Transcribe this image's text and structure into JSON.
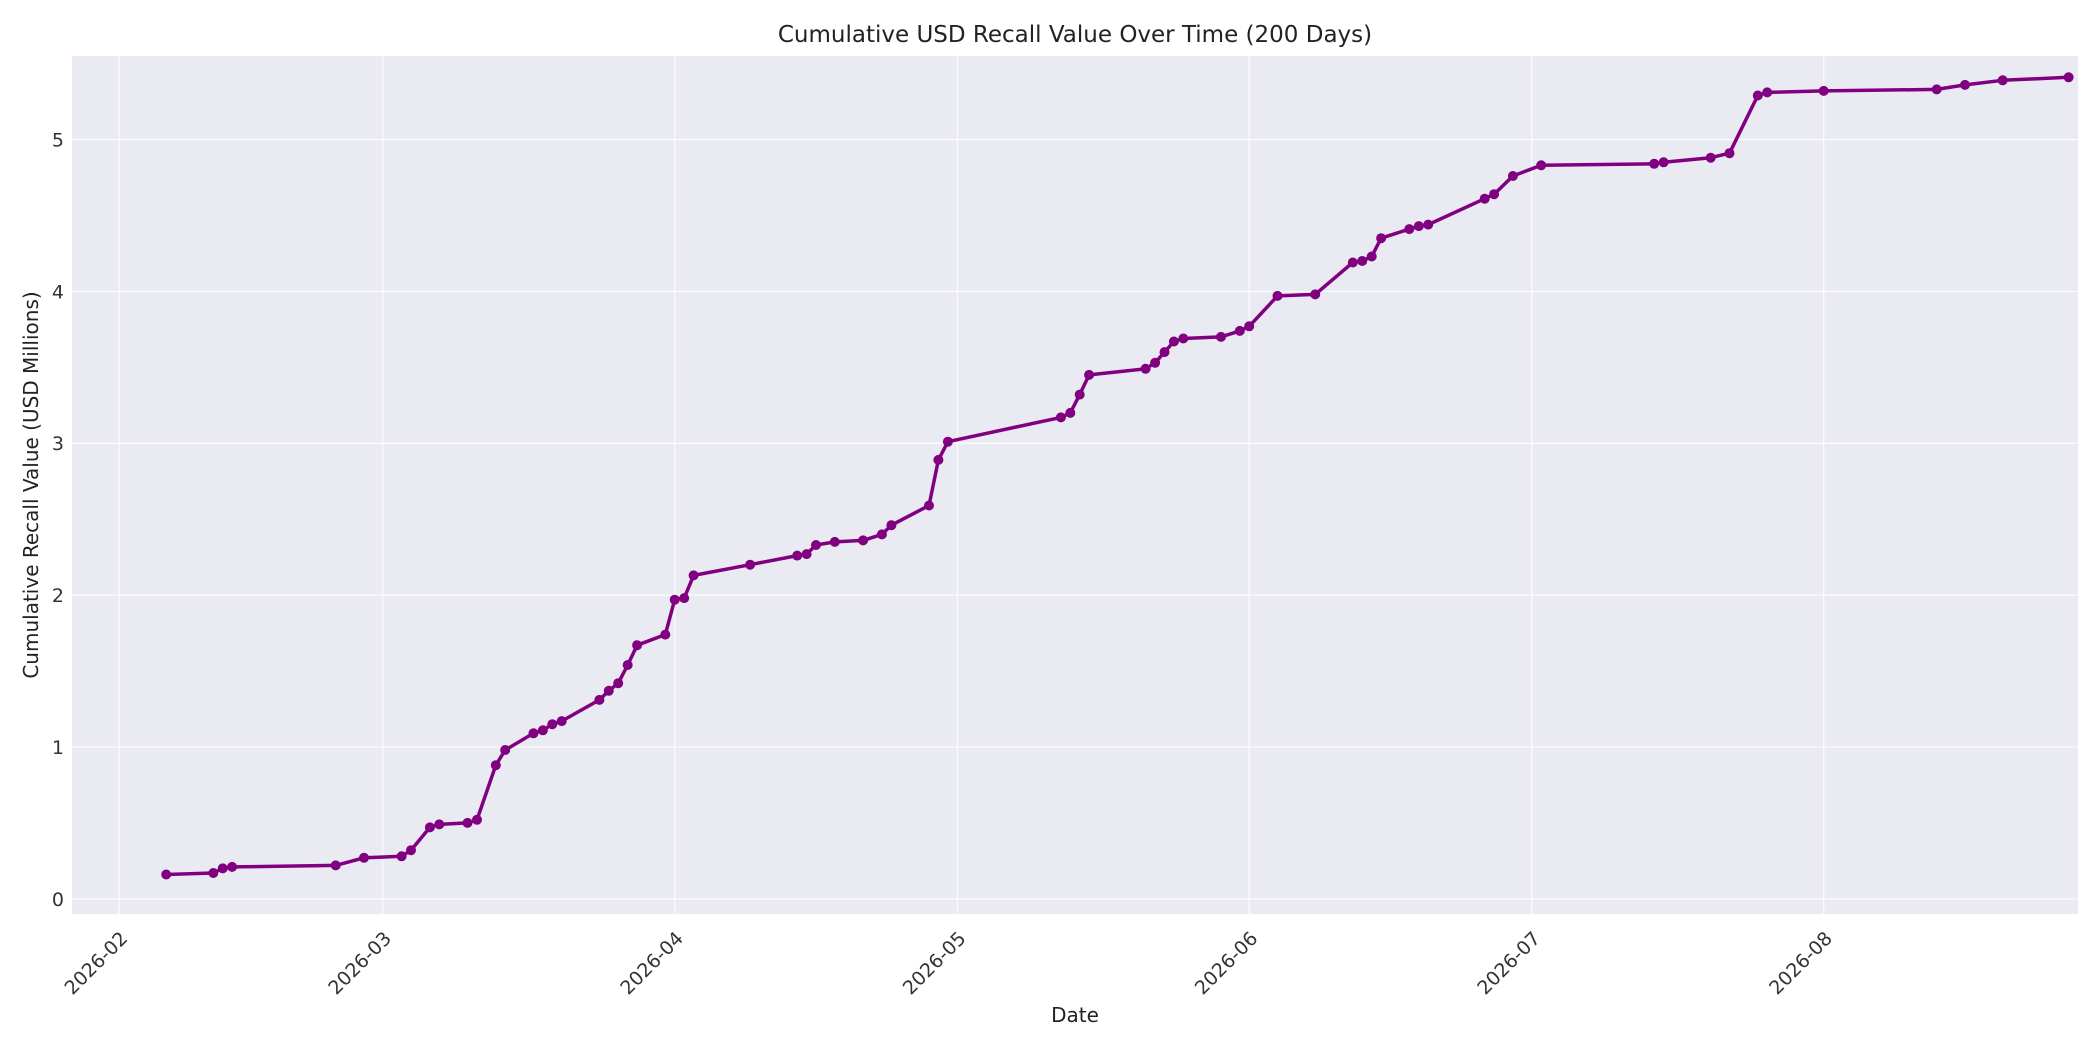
{
  "chart_data": {
    "type": "line",
    "title": "Cumulative USD Recall Value Over Time (200 Days)",
    "xlabel": "Date",
    "ylabel": "Cumulative Recall Value (USD Millions)",
    "xlim": [
      "2026-01-27",
      "2026-08-28"
    ],
    "ylim": [
      -0.1,
      5.55
    ],
    "xticks": [
      "2026-02",
      "2026-03",
      "2026-04",
      "2026-05",
      "2026-06",
      "2026-07",
      "2026-08"
    ],
    "yticks": [
      0,
      1,
      2,
      3,
      4,
      5
    ],
    "grid": true,
    "legend": "none",
    "colors": {
      "line": "#800080",
      "plot_bg": "#eaeaf2",
      "grid": "#ffffff"
    },
    "series": [
      {
        "x": [
          "2026-02-06",
          "2026-02-11",
          "2026-02-12",
          "2026-02-13",
          "2026-02-24",
          "2026-02-27",
          "2026-03-03",
          "2026-03-04",
          "2026-03-06",
          "2026-03-07",
          "2026-03-10",
          "2026-03-11",
          "2026-03-13",
          "2026-03-14",
          "2026-03-17",
          "2026-03-18",
          "2026-03-19",
          "2026-03-20",
          "2026-03-24",
          "2026-03-25",
          "2026-03-26",
          "2026-03-27",
          "2026-03-28",
          "2026-03-31",
          "2026-04-01",
          "2026-04-02",
          "2026-04-03",
          "2026-04-09",
          "2026-04-14",
          "2026-04-15",
          "2026-04-16",
          "2026-04-18",
          "2026-04-21",
          "2026-04-23",
          "2026-04-24",
          "2026-04-28",
          "2026-04-29",
          "2026-04-30",
          "2026-05-12",
          "2026-05-13",
          "2026-05-14",
          "2026-05-15",
          "2026-05-21",
          "2026-05-22",
          "2026-05-23",
          "2026-05-24",
          "2026-05-25",
          "2026-05-29",
          "2026-05-31",
          "2026-06-01",
          "2026-06-04",
          "2026-06-08",
          "2026-06-12",
          "2026-06-13",
          "2026-06-14",
          "2026-06-15",
          "2026-06-18",
          "2026-06-19",
          "2026-06-20",
          "2026-06-26",
          "2026-06-27",
          "2026-06-29",
          "2026-07-02",
          "2026-07-14",
          "2026-07-15",
          "2026-07-20",
          "2026-07-22",
          "2026-07-25",
          "2026-07-26",
          "2026-08-01",
          "2026-08-13",
          "2026-08-16",
          "2026-08-20",
          "2026-08-27"
        ],
        "y": [
          0.16,
          0.17,
          0.2,
          0.21,
          0.22,
          0.27,
          0.28,
          0.32,
          0.47,
          0.49,
          0.5,
          0.52,
          0.88,
          0.98,
          1.09,
          1.11,
          1.15,
          1.17,
          1.31,
          1.37,
          1.42,
          1.54,
          1.67,
          1.74,
          1.97,
          1.98,
          2.13,
          2.2,
          2.26,
          2.27,
          2.33,
          2.35,
          2.36,
          2.4,
          2.46,
          2.59,
          2.89,
          3.01,
          3.17,
          3.2,
          3.32,
          3.45,
          3.49,
          3.53,
          3.6,
          3.67,
          3.69,
          3.7,
          3.74,
          3.77,
          3.97,
          3.98,
          4.19,
          4.2,
          4.23,
          4.35,
          4.41,
          4.43,
          4.44,
          4.61,
          4.64,
          4.76,
          4.83,
          4.84,
          4.85,
          4.88,
          4.91,
          5.29,
          5.31,
          5.32,
          5.33,
          5.36,
          5.39,
          5.41
        ]
      }
    ]
  }
}
